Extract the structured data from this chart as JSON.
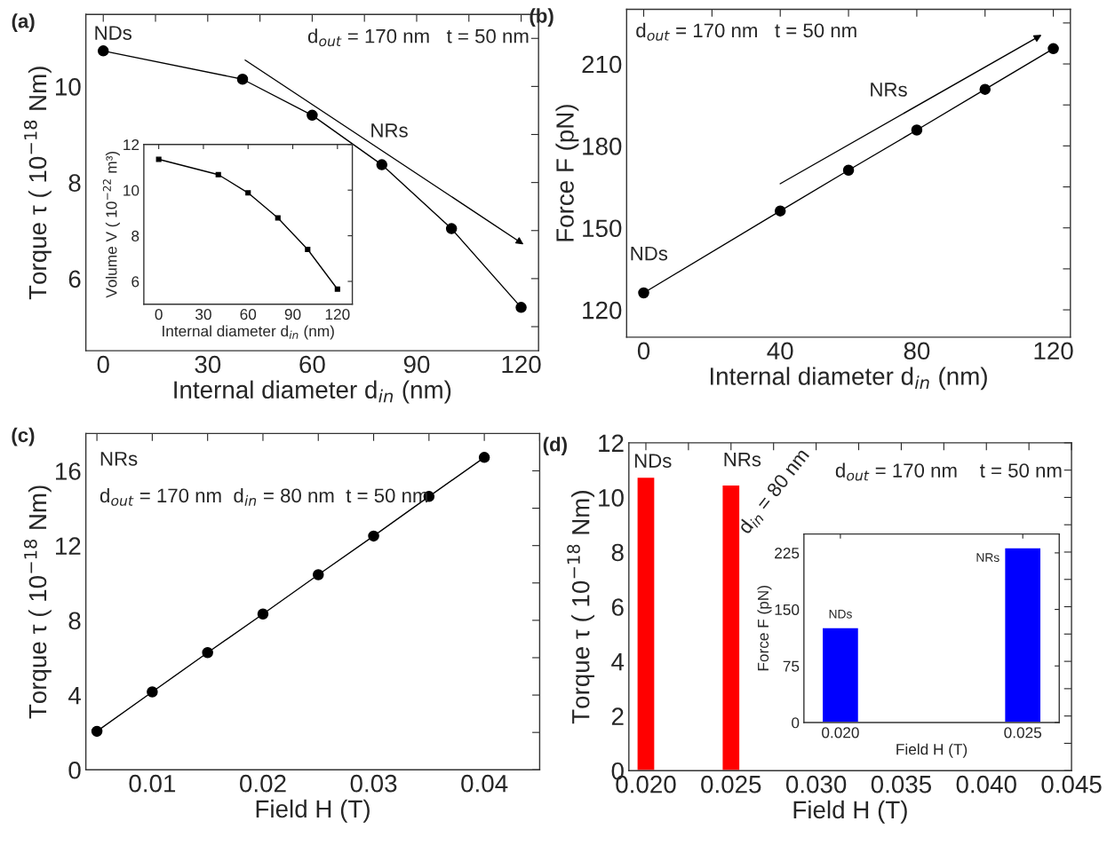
{
  "chart_data": [
    {
      "type": "line",
      "title": "(a)",
      "xlabel": "Internal diameter d$_{in}$ (nm)",
      "ylabel": "Torque τ ( 10$^{−18}$ Nm)",
      "xlim": [
        -5,
        125
      ],
      "ylim": [
        4.5,
        11.5
      ],
      "xticks": [
        0,
        {
          "value": 15,
          "label": null
        },
        30,
        {
          "value": 45,
          "label": null
        },
        60,
        {
          "value": 75,
          "label": null
        },
        90,
        {
          "value": 105,
          "label": null
        },
        120
      ],
      "yticks": [
        {
          "value": 5,
          "label": null
        },
        6,
        {
          "value": 7,
          "label": null
        },
        8,
        {
          "value": 9,
          "label": null
        },
        10,
        {
          "value": 11,
          "label": null
        }
      ],
      "marker": "circle",
      "annotations": [
        "d$_{out}$ = 170 nm   t = 50 nm",
        "NDs",
        "NRs"
      ],
      "series": [
        {
          "color": "#000000",
          "x": [
            0,
            40,
            60,
            80,
            100,
            120
          ],
          "values": [
            10.74,
            10.15,
            9.4,
            8.37,
            7.04,
            5.4
          ]
        }
      ]
    },
    {
      "type": "line",
      "xlabel": "Internal diameter d$_{in}$ (nm)",
      "ylabel": "Volume V ( 10$^{−22}$ m³)",
      "xlim": [
        -10,
        130
      ],
      "ylim": [
        5,
        12
      ],
      "xticks": [
        0,
        30,
        60,
        90,
        120
      ],
      "yticks": [
        6,
        8,
        10,
        12
      ],
      "marker": "square",
      "series": [
        {
          "color": "#000000",
          "x": [
            0,
            40,
            60,
            80,
            100,
            120
          ],
          "values": [
            11.35,
            10.68,
            9.88,
            8.78,
            7.4,
            5.66
          ]
        }
      ]
    },
    {
      "type": "line",
      "title": "(b)",
      "xlabel": "Internal diameter d$_{in}$ (nm)",
      "ylabel": "Force F (pN)",
      "xlim": [
        -5,
        125
      ],
      "ylim": [
        110,
        230
      ],
      "xticks": [
        0,
        {
          "value": 20,
          "label": null
        },
        40,
        {
          "value": 60,
          "label": null
        },
        80,
        {
          "value": 100,
          "label": null
        },
        120
      ],
      "yticks": [
        120,
        {
          "value": 135,
          "label": null
        },
        150,
        {
          "value": 165,
          "label": null
        },
        180,
        {
          "value": 195,
          "label": null
        },
        210,
        {
          "value": 225,
          "label": null
        }
      ],
      "marker": "circle",
      "annotations": [
        "d$_{out}$ = 170 nm   t = 50 nm",
        "NDs",
        "NRs"
      ],
      "series": [
        {
          "color": "#000000",
          "x": [
            0,
            40,
            60,
            80,
            100,
            120
          ],
          "values": [
            126.2,
            156.2,
            171.1,
            185.8,
            200.7,
            215.6
          ]
        }
      ]
    },
    {
      "type": "line",
      "title": "(c)",
      "xlabel": "Field H (T)",
      "ylabel": "Torque τ ( 10$^{−18}$ Nm)",
      "xlim": [
        0.004,
        0.045
      ],
      "ylim": [
        0,
        18
      ],
      "xticks": [
        {
          "value": 0.005,
          "label": null
        },
        0.01,
        {
          "value": 0.015,
          "label": null
        },
        0.02,
        {
          "value": 0.025,
          "label": null
        },
        0.03,
        {
          "value": 0.035,
          "label": null
        },
        0.04,
        {
          "value": 0.045,
          "label": null
        }
      ],
      "yticks": [
        0,
        {
          "value": 2,
          "label": null
        },
        4,
        {
          "value": 6,
          "label": null
        },
        8,
        {
          "value": 10,
          "label": null
        },
        12,
        {
          "value": 14,
          "label": null
        },
        16
      ],
      "marker": "circle",
      "annotations": [
        "NRs",
        "d$_{out}$ = 170 nm  d$_{in}$ = 80 nm  t = 50 nm"
      ],
      "series": [
        {
          "color": "#000000",
          "x": [
            0.005,
            0.01,
            0.015,
            0.02,
            0.025,
            0.03,
            0.035,
            0.04
          ],
          "values": [
            2.06,
            4.17,
            6.27,
            8.34,
            10.44,
            12.51,
            14.63,
            16.72
          ]
        }
      ]
    },
    {
      "type": "bar",
      "title": "(d)",
      "xlabel": "Field H (T)",
      "ylabel": "Torque τ ( 10$^{−18}$ Nm)",
      "xlim": [
        0.019,
        0.045
      ],
      "ylim": [
        0,
        12
      ],
      "xticks": [
        {
          "value": 0.02,
          "label": "0.020"
        },
        {
          "value": 0.0225,
          "label": null
        },
        {
          "value": 0.025,
          "label": "0.025"
        },
        {
          "value": 0.0275,
          "label": null
        },
        {
          "value": 0.03,
          "label": "0.030"
        },
        {
          "value": 0.0325,
          "label": null
        },
        {
          "value": 0.035,
          "label": "0.035"
        },
        {
          "value": 0.0375,
          "label": null
        },
        {
          "value": 0.04,
          "label": "0.040"
        },
        {
          "value": 0.0425,
          "label": null
        },
        {
          "value": 0.045,
          "label": "0.045"
        }
      ],
      "yticks": [
        0,
        {
          "value": 1,
          "label": null
        },
        2,
        {
          "value": 3,
          "label": null
        },
        4,
        {
          "value": 5,
          "label": null
        },
        6,
        {
          "value": 7,
          "label": null
        },
        8,
        {
          "value": 9,
          "label": null
        },
        10,
        {
          "value": 11,
          "label": null
        },
        12
      ],
      "annotations": [
        "d$_{out}$ = 170 nm    t = 50 nm",
        "d$_{in}$ = 80 nm",
        "NDs",
        "NRs"
      ],
      "x": [
        0.02,
        0.025
      ],
      "values": [
        10.74,
        10.46
      ],
      "color": "#ff0000"
    },
    {
      "type": "bar",
      "xlabel": "Field H (T)",
      "ylabel": "Force F (pN)",
      "ylim": [
        0,
        250
      ],
      "yticks": [
        0,
        75,
        150,
        225
      ],
      "categories": [
        "0.020",
        "0.025"
      ],
      "values": [
        126,
        232
      ],
      "color": "#0000ff",
      "annotations": [
        "NDs",
        "NRs"
      ]
    }
  ]
}
